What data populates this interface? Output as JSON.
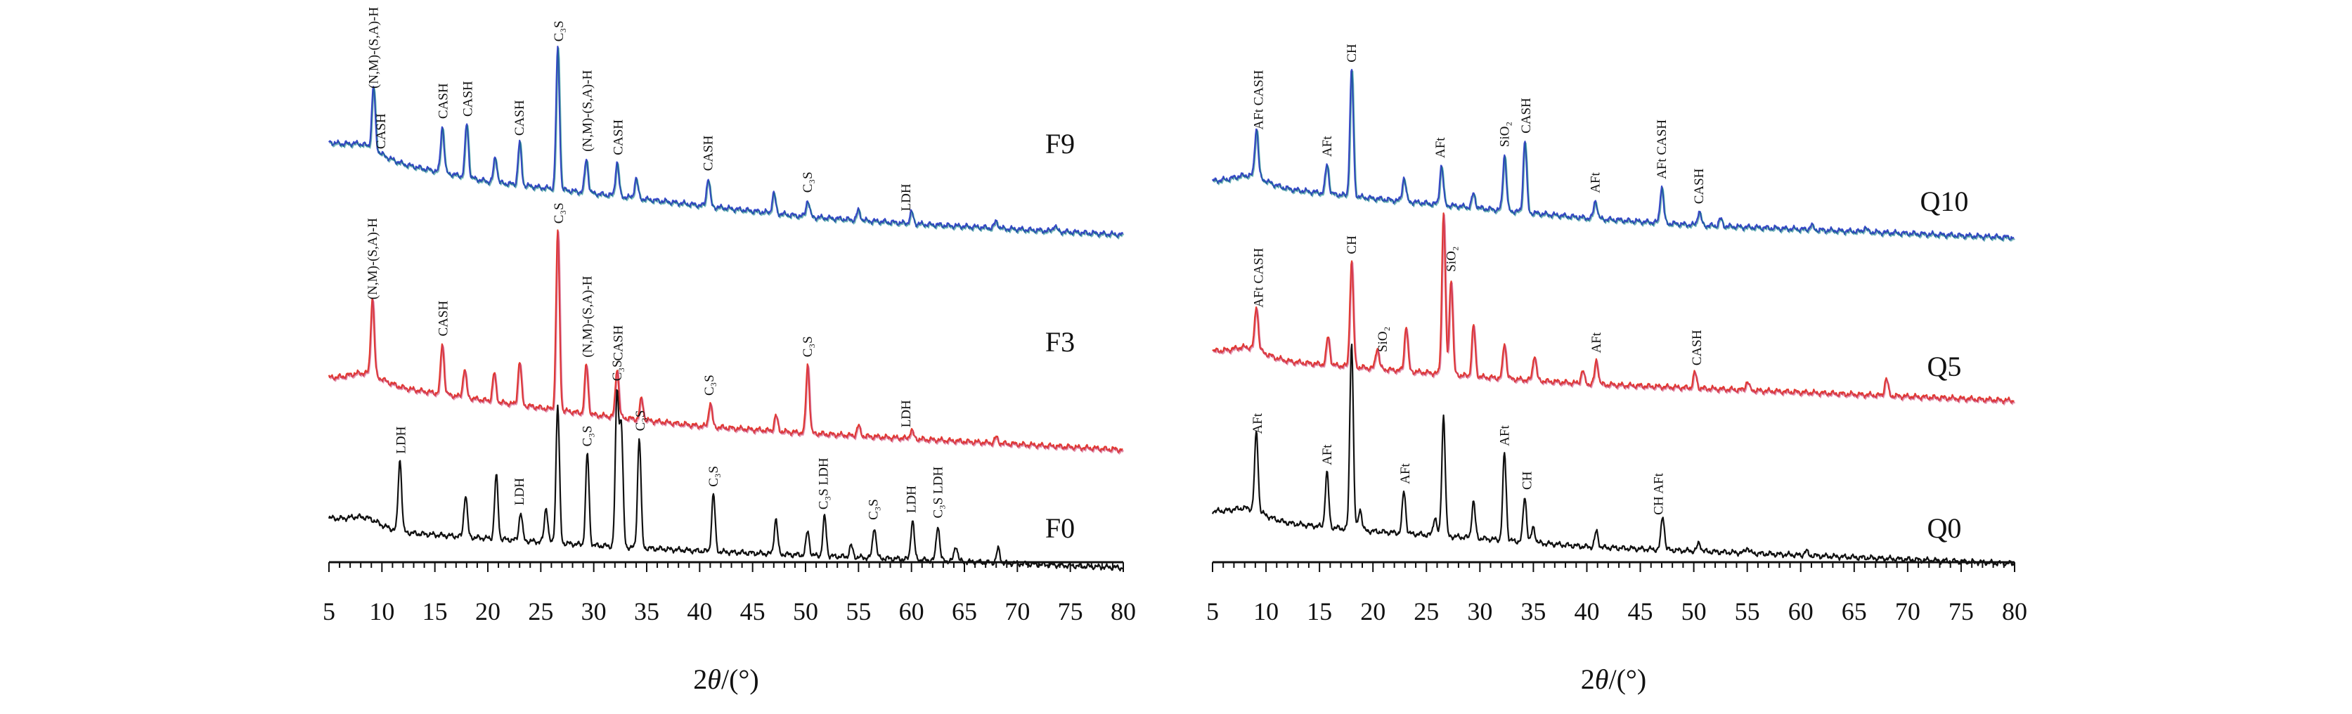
{
  "chart_data": [
    {
      "type": "line",
      "panel": "left",
      "xlabel_prefix": "2",
      "xlabel_symbol": "θ",
      "xlabel_suffix": "/(°)",
      "xlim": [
        5,
        80
      ],
      "xticks": [
        5,
        10,
        15,
        20,
        25,
        30,
        35,
        40,
        45,
        50,
        55,
        60,
        65,
        70,
        75,
        80
      ],
      "series": [
        {
          "name": "F9",
          "colors": [
            "#3a4fd0",
            "#2a2f8a",
            "#0a8a8a"
          ],
          "baseline": [
            [
              5,
              203
            ],
            [
              10,
              228
            ],
            [
              20,
              258
            ],
            [
              30,
              275
            ],
            [
              40,
              292
            ],
            [
              50,
              308
            ],
            [
              60,
              318
            ],
            [
              70,
              326
            ],
            [
              80,
              334
            ]
          ],
          "peaks": [
            [
              9.2,
              88
            ],
            [
              15.7,
              66
            ],
            [
              18,
              76
            ],
            [
              20.7,
              36
            ],
            [
              23,
              60
            ],
            [
              26.6,
              200
            ],
            [
              29.3,
              48
            ],
            [
              32.2,
              48
            ],
            [
              34,
              28
            ],
            [
              40.8,
              40
            ],
            [
              47,
              28
            ],
            [
              50.2,
              24
            ],
            [
              55,
              14
            ],
            [
              60,
              16
            ],
            [
              68,
              10
            ],
            [
              73.5,
              8
            ]
          ],
          "labels": [
            {
              "x": 9.2,
              "text": "(N,M)-(S,A)-H"
            },
            {
              "x": 9.9,
              "text": "CASH"
            },
            {
              "x": 15.8,
              "text": "CASH"
            },
            {
              "x": 18.1,
              "text": "CASH"
            },
            {
              "x": 23.0,
              "text": "CASH"
            },
            {
              "x": 26.7,
              "text": "C₃S"
            },
            {
              "x": 29.4,
              "text": "(N,M)-(S,A)-H"
            },
            {
              "x": 32.3,
              "text": "CASH"
            },
            {
              "x": 40.8,
              "text": "CASH"
            },
            {
              "x": 50.2,
              "text": "C₃S"
            },
            {
              "x": 59.5,
              "text": "LDH"
            }
          ]
        },
        {
          "name": "F3",
          "colors": [
            "#e83a2a",
            "#c0305a",
            "#d4507a"
          ],
          "baseline": [
            [
              5,
              538
            ],
            [
              10,
              548
            ],
            [
              20,
              570
            ],
            [
              30,
              590
            ],
            [
              40,
              606
            ],
            [
              50,
              616
            ],
            [
              60,
              624
            ],
            [
              70,
              632
            ],
            [
              80,
              640
            ]
          ],
          "peaks": [
            [
              9.1,
              110
            ],
            [
              15.7,
              72
            ],
            [
              17.8,
              40
            ],
            [
              20.6,
              40
            ],
            [
              23,
              62
            ],
            [
              26.6,
              255
            ],
            [
              29.3,
              70
            ],
            [
              32.2,
              70
            ],
            [
              34.5,
              30
            ],
            [
              41,
              34
            ],
            [
              47.2,
              22
            ],
            [
              50.2,
              98
            ],
            [
              55,
              14
            ],
            [
              60,
              12
            ],
            [
              68,
              8
            ]
          ],
          "labels": [
            {
              "x": 9.1,
              "text": "(N,M)-(S,A)-H"
            },
            {
              "x": 15.8,
              "text": "CASH"
            },
            {
              "x": 26.7,
              "text": "C₃S"
            },
            {
              "x": 29.4,
              "text": "(N,M)-(S,A)-H"
            },
            {
              "x": 32.3,
              "text": "CASH"
            },
            {
              "x": 40.9,
              "text": "C₃S"
            },
            {
              "x": 50.2,
              "text": "C₃S"
            },
            {
              "x": 59.5,
              "text": "LDH"
            }
          ]
        },
        {
          "name": "F0",
          "colors": [
            "#111111"
          ],
          "baseline": [
            [
              5,
              738
            ],
            [
              10,
              756
            ],
            [
              20,
              766
            ],
            [
              30,
              776
            ],
            [
              40,
              784
            ],
            [
              50,
              790
            ],
            [
              60,
              796
            ],
            [
              70,
              802
            ],
            [
              80,
              808
            ]
          ],
          "peaks": [
            [
              11.7,
              102
            ],
            [
              17.9,
              60
            ],
            [
              20.8,
              90
            ],
            [
              23.1,
              40
            ],
            [
              25.5,
              50
            ],
            [
              26.6,
              196
            ],
            [
              29.4,
              130
            ],
            [
              32.2,
              218
            ],
            [
              32.6,
              172
            ],
            [
              34.3,
              156
            ],
            [
              41.3,
              82
            ],
            [
              47.2,
              50
            ],
            [
              50.2,
              34
            ],
            [
              51.8,
              56
            ],
            [
              54.3,
              16
            ],
            [
              56.5,
              44
            ],
            [
              60.1,
              56
            ],
            [
              62.5,
              50
            ],
            [
              64.2,
              22
            ],
            [
              68.2,
              20
            ]
          ],
          "labels": [
            {
              "x": 11.8,
              "text": "LDH"
            },
            {
              "x": 23.0,
              "text": "LDH"
            },
            {
              "x": 29.4,
              "text": "C₃S"
            },
            {
              "x": 32.2,
              "text": "C₃S"
            },
            {
              "x": 34.4,
              "text": "C₃S"
            },
            {
              "x": 41.3,
              "text": "C₃S"
            },
            {
              "x": 51.7,
              "text": "C₃S LDH"
            },
            {
              "x": 56.4,
              "text": "C₃S"
            },
            {
              "x": 60.0,
              "text": "LDH"
            },
            {
              "x": 62.5,
              "text": "C₃S LDH"
            }
          ]
        }
      ]
    },
    {
      "type": "line",
      "panel": "right",
      "xlabel_prefix": "2",
      "xlabel_symbol": "θ",
      "xlabel_suffix": "/(°)",
      "xlim": [
        5,
        80
      ],
      "xticks": [
        5,
        10,
        15,
        20,
        25,
        30,
        35,
        40,
        45,
        50,
        55,
        60,
        65,
        70,
        75,
        80
      ],
      "series": [
        {
          "name": "Q10",
          "colors": [
            "#3a4fd0",
            "#2a2f8a",
            "#0a8a8a"
          ],
          "baseline": [
            [
              5,
              258
            ],
            [
              10,
              266
            ],
            [
              20,
              282
            ],
            [
              30,
              296
            ],
            [
              40,
              310
            ],
            [
              50,
              320
            ],
            [
              60,
              326
            ],
            [
              70,
              332
            ],
            [
              80,
              338
            ]
          ],
          "peaks": [
            [
              9.1,
              70
            ],
            [
              15.7,
              42
            ],
            [
              18,
              180
            ],
            [
              22.9,
              34
            ],
            [
              26.4,
              56
            ],
            [
              29.4,
              20
            ],
            [
              32.3,
              80
            ],
            [
              34.2,
              102
            ],
            [
              40.8,
              26
            ],
            [
              47,
              52
            ],
            [
              50.5,
              20
            ],
            [
              52.5,
              10
            ],
            [
              61,
              6
            ],
            [
              66,
              6
            ]
          ],
          "labels": [
            {
              "x": 9.3,
              "text": "AFt CASH"
            },
            {
              "x": 15.7,
              "text": "AFt"
            },
            {
              "x": 18.0,
              "text": "CH"
            },
            {
              "x": 26.3,
              "text": "AFt"
            },
            {
              "x": 32.3,
              "text": "SiO₂"
            },
            {
              "x": 34.3,
              "text": "CASH"
            },
            {
              "x": 40.8,
              "text": "AFt"
            },
            {
              "x": 47.0,
              "text": "AFt CASH"
            },
            {
              "x": 50.5,
              "text": "CASH"
            }
          ]
        },
        {
          "name": "Q5",
          "colors": [
            "#e83a2a",
            "#c0305a",
            "#d4507a"
          ],
          "baseline": [
            [
              5,
              500
            ],
            [
              10,
              512
            ],
            [
              20,
              524
            ],
            [
              30,
              536
            ],
            [
              40,
              546
            ],
            [
              50,
              552
            ],
            [
              60,
              558
            ],
            [
              70,
              564
            ],
            [
              80,
              570
            ]
          ],
          "peaks": [
            [
              9.1,
              62
            ],
            [
              15.8,
              40
            ],
            [
              18,
              150
            ],
            [
              20.4,
              30
            ],
            [
              23.1,
              64
            ],
            [
              26.6,
              230
            ],
            [
              27.3,
              136
            ],
            [
              29.4,
              72
            ],
            [
              32.3,
              50
            ],
            [
              35.1,
              36
            ],
            [
              39.6,
              18
            ],
            [
              40.9,
              34
            ],
            [
              50.1,
              22
            ],
            [
              55,
              12
            ],
            [
              68,
              24
            ]
          ],
          "labels": [
            {
              "x": 9.3,
              "text": "AFt CASH"
            },
            {
              "x": 18.0,
              "text": "CH"
            },
            {
              "x": 20.9,
              "text": "SiO₂"
            },
            {
              "x": 27.3,
              "text": "SiO₂"
            },
            {
              "x": 40.9,
              "text": "AFt"
            },
            {
              "x": 50.3,
              "text": "CASH"
            }
          ]
        },
        {
          "name": "Q0",
          "colors": [
            "#111111"
          ],
          "baseline": [
            [
              5,
              728
            ],
            [
              10,
              742
            ],
            [
              20,
              756
            ],
            [
              30,
              766
            ],
            [
              40,
              778
            ],
            [
              50,
              784
            ],
            [
              60,
              790
            ],
            [
              70,
              796
            ],
            [
              80,
              802
            ]
          ],
          "peaks": [
            [
              9.1,
              112
            ],
            [
              15.7,
              78
            ],
            [
              18,
              268
            ],
            [
              18.8,
              30
            ],
            [
              22.9,
              60
            ],
            [
              25.8,
              26
            ],
            [
              26.6,
              172
            ],
            [
              29.4,
              52
            ],
            [
              32.3,
              124
            ],
            [
              34.2,
              64
            ],
            [
              35,
              22
            ],
            [
              40.9,
              22
            ],
            [
              47.1,
              48
            ],
            [
              50.5,
              12
            ],
            [
              55,
              8
            ],
            [
              60.5,
              6
            ]
          ],
          "labels": [
            {
              "x": 9.2,
              "text": "AFt"
            },
            {
              "x": 15.7,
              "text": "AFt"
            },
            {
              "x": 23.0,
              "text": "AFt"
            },
            {
              "x": 32.3,
              "text": "AFt"
            },
            {
              "x": 34.4,
              "text": "CH"
            },
            {
              "x": 46.7,
              "text": "CH AFt"
            }
          ]
        }
      ]
    }
  ]
}
